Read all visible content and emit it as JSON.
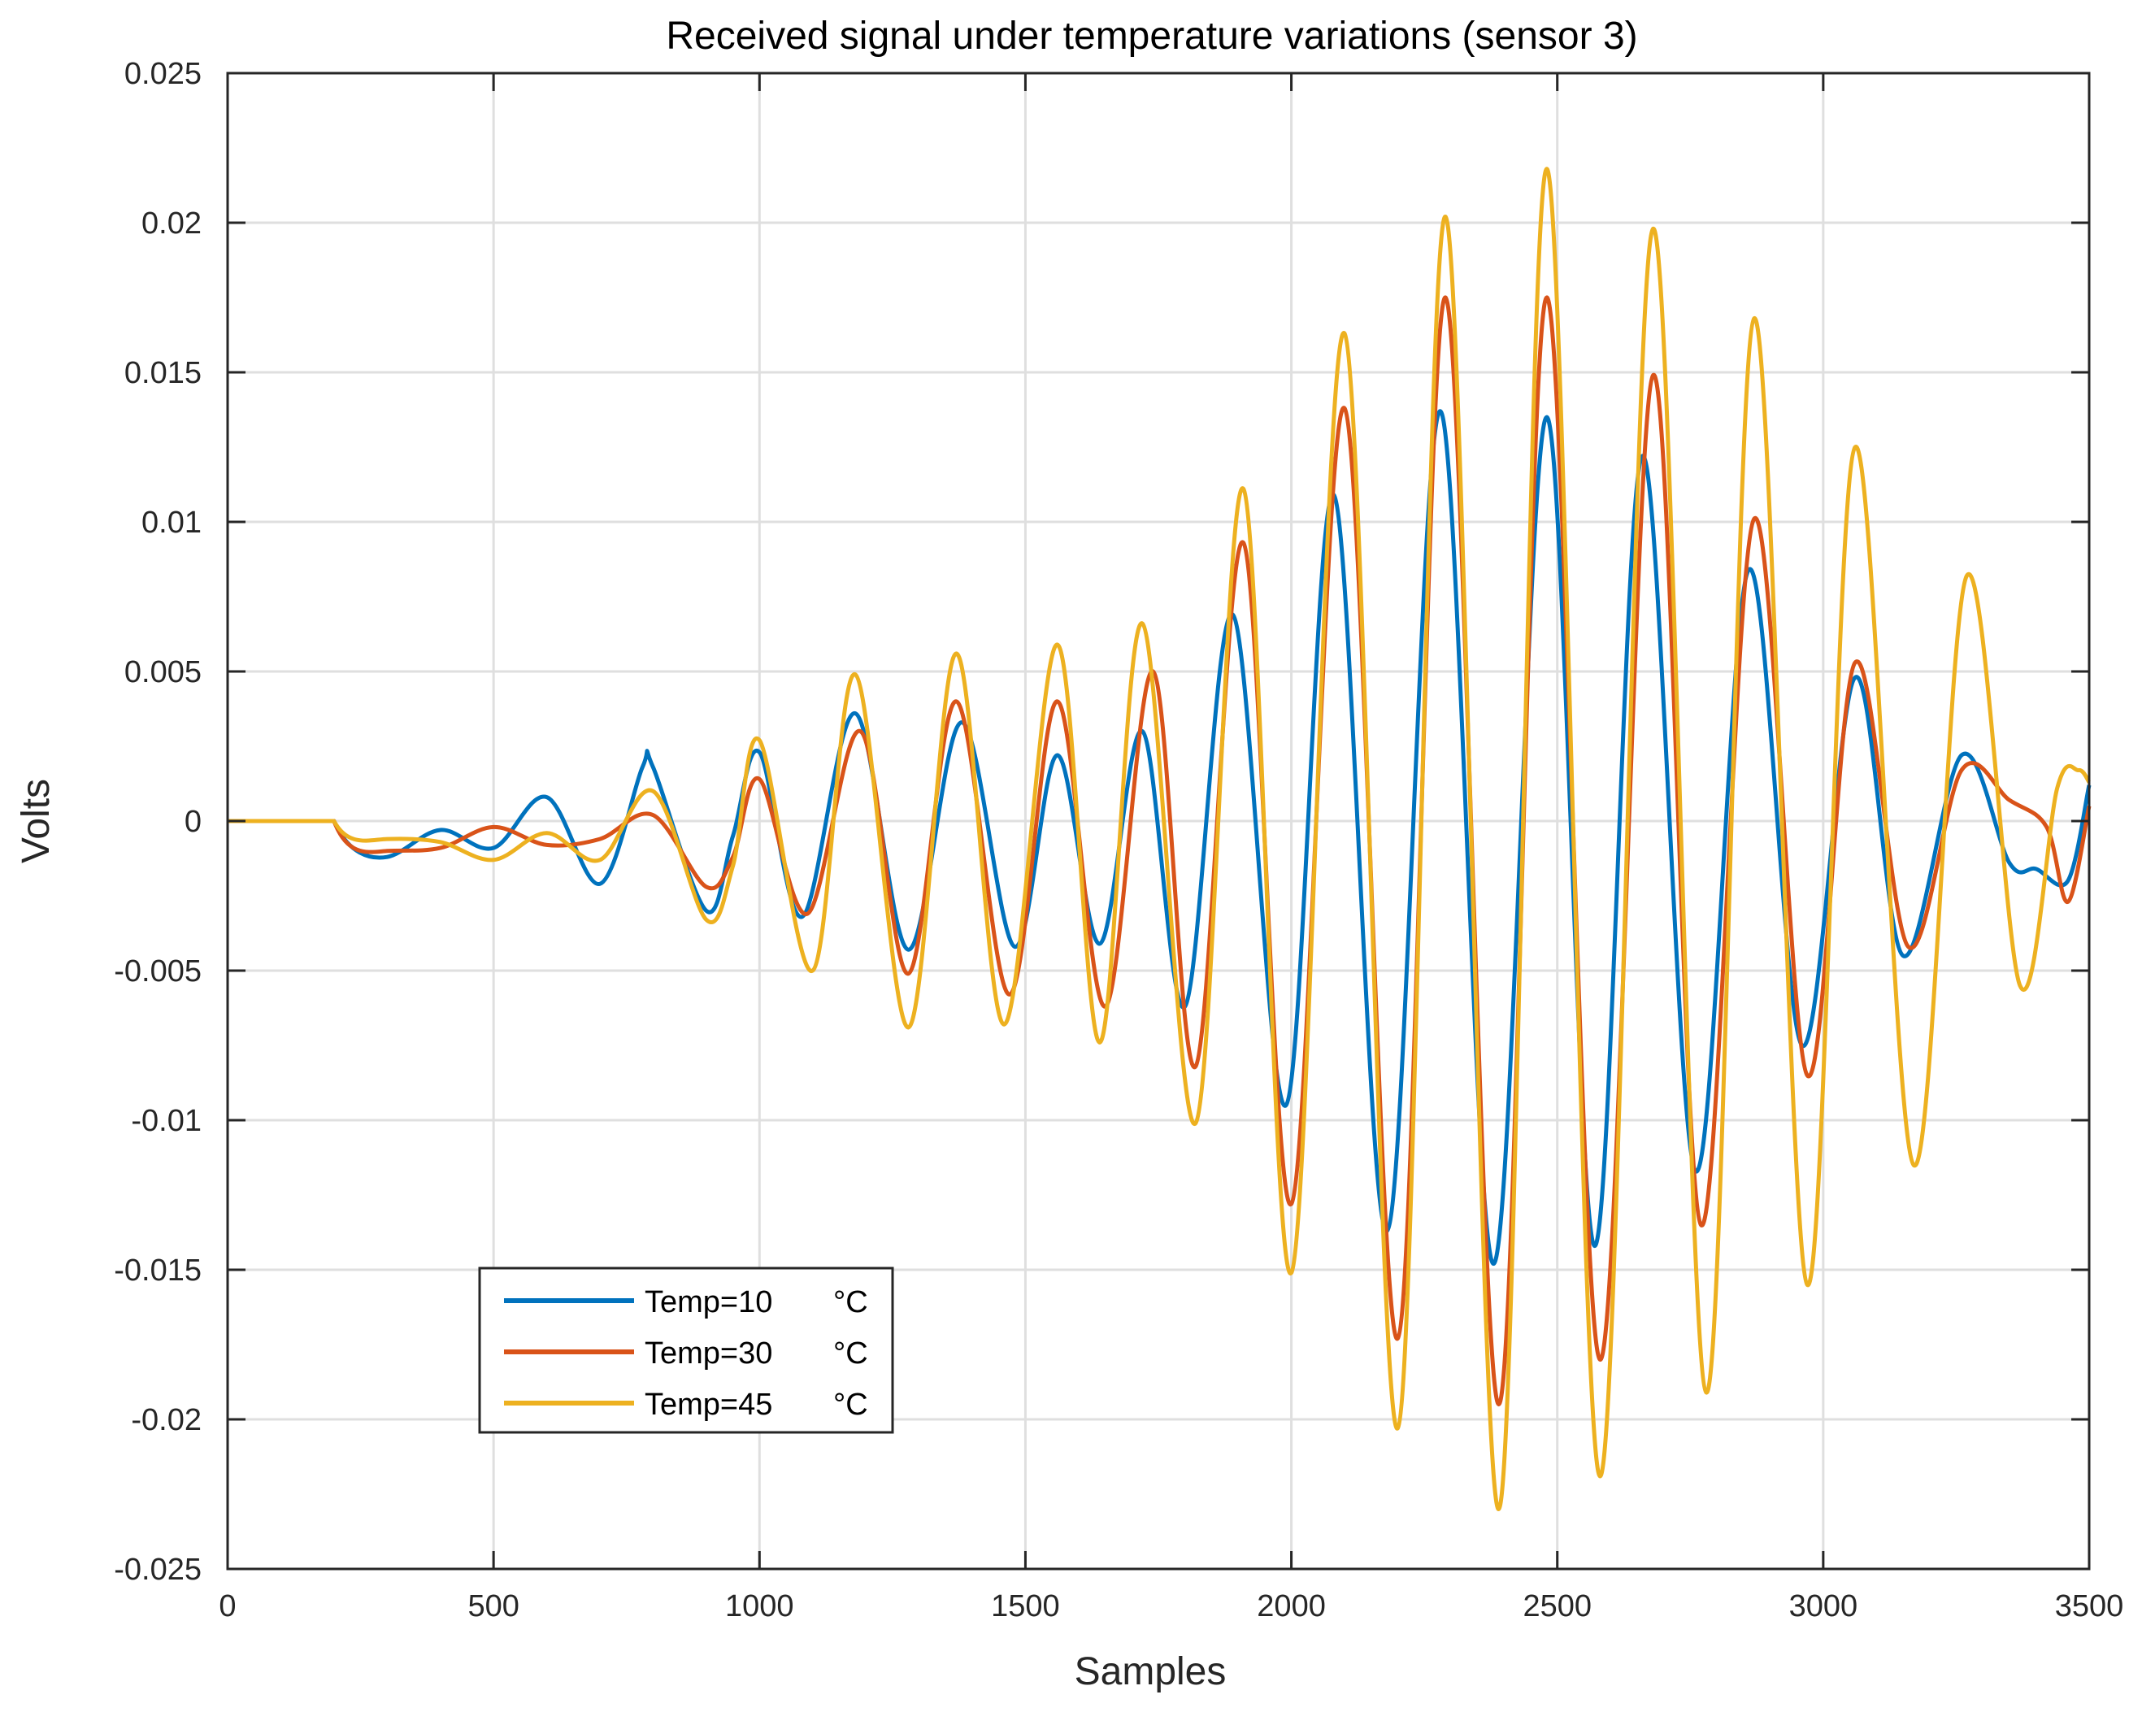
{
  "chart_data": {
    "type": "line",
    "title": "Received signal under temperature variations (sensor 3)",
    "xlabel": "Samples",
    "ylabel": "Volts",
    "xlim": [
      0,
      3500
    ],
    "ylim": [
      -0.025,
      0.025
    ],
    "xticks": [
      0,
      500,
      1000,
      1500,
      2000,
      2500,
      3000,
      3500
    ],
    "xtick_labels": [
      "0",
      "500",
      "1000",
      "1500",
      "2000",
      "2500",
      "3000",
      "3500"
    ],
    "yticks": [
      -0.025,
      -0.02,
      -0.015,
      -0.01,
      -0.005,
      0,
      0.005,
      0.01,
      0.015,
      0.02,
      0.025
    ],
    "ytick_labels": [
      "-0.025",
      "-0.02",
      "-0.015",
      "-0.01",
      "-0.005",
      "0",
      "0.005",
      "0.01",
      "0.015",
      "0.02",
      "0.025"
    ],
    "grid": true,
    "legend_position": "lower-left",
    "series": [
      {
        "name": "Temp=10 °C",
        "label_text": "Temp=10",
        "unit_text": "°C",
        "color": "#0072BD",
        "x": [
          0,
          200,
          210,
          300,
          400,
          500,
          600,
          700,
          780,
          800,
          900,
          950,
          1000,
          1080,
          1180,
          1280,
          1380,
          1480,
          1560,
          1640,
          1720,
          1800,
          1890,
          1990,
          2080,
          2180,
          2280,
          2380,
          2480,
          2570,
          2660,
          2760,
          2860,
          2960,
          3060,
          3150,
          3260,
          3350,
          3400,
          3460,
          3500
        ],
        "y": [
          0,
          0,
          -0.0009,
          -0.0012,
          -0.0003,
          -0.0009,
          0.0008,
          -0.0021,
          0.0018,
          0.0018,
          -0.003,
          -0.0005,
          0.0023,
          -0.0032,
          0.0036,
          -0.0043,
          0.0033,
          -0.0042,
          0.0022,
          -0.0041,
          0.003,
          -0.0062,
          0.0069,
          -0.0095,
          0.0109,
          -0.0137,
          0.0137,
          -0.0148,
          0.0135,
          -0.0142,
          0.0122,
          -0.0117,
          0.0084,
          -0.0075,
          0.0048,
          -0.0045,
          0.0022,
          -0.0014,
          -0.0016,
          -0.002,
          0.0012
        ]
      },
      {
        "name": "Temp=30 °C",
        "label_text": "Temp=30",
        "unit_text": "°C",
        "color": "#D95319",
        "x": [
          0,
          200,
          210,
          300,
          400,
          500,
          600,
          700,
          800,
          900,
          950,
          1000,
          1090,
          1190,
          1280,
          1370,
          1470,
          1560,
          1650,
          1740,
          1820,
          1910,
          2000,
          2100,
          2200,
          2290,
          2390,
          2480,
          2580,
          2680,
          2770,
          2870,
          2970,
          3060,
          3160,
          3260,
          3350,
          3420,
          3460,
          3500
        ],
        "y": [
          0,
          0,
          -0.0011,
          -0.001,
          -0.0009,
          -0.0002,
          -0.0008,
          -0.0006,
          0.0002,
          -0.0022,
          -0.0012,
          0.0014,
          -0.0031,
          0.003,
          -0.0051,
          0.004,
          -0.0058,
          0.004,
          -0.0062,
          0.005,
          -0.0082,
          0.0093,
          -0.0128,
          0.0138,
          -0.0173,
          0.0175,
          -0.0195,
          0.0175,
          -0.018,
          0.0149,
          -0.0135,
          0.0101,
          -0.0085,
          0.0053,
          -0.0042,
          0.0017,
          0.0007,
          -0.0002,
          -0.0027,
          0.0005
        ]
      },
      {
        "name": "Temp=45 °C",
        "label_text": "Temp=45",
        "unit_text": "°C",
        "color": "#EDB120",
        "x": [
          0,
          200,
          210,
          300,
          400,
          500,
          600,
          700,
          800,
          900,
          950,
          1000,
          1100,
          1180,
          1280,
          1370,
          1460,
          1560,
          1640,
          1720,
          1820,
          1910,
          2000,
          2100,
          2200,
          2290,
          2390,
          2480,
          2580,
          2680,
          2780,
          2870,
          2970,
          3060,
          3170,
          3270,
          3370,
          3440,
          3480,
          3500
        ],
        "y": [
          0,
          0,
          -0.0008,
          -0.0006,
          -0.0007,
          -0.0013,
          -0.0004,
          -0.0013,
          0.001,
          -0.0033,
          -0.0015,
          0.0027,
          -0.005,
          0.0049,
          -0.0069,
          0.0056,
          -0.0068,
          0.0059,
          -0.0074,
          0.0066,
          -0.0101,
          0.0111,
          -0.0151,
          0.0163,
          -0.0203,
          0.0202,
          -0.023,
          0.0218,
          -0.0219,
          0.0198,
          -0.0191,
          0.0168,
          -0.0155,
          0.0125,
          -0.0115,
          0.0082,
          -0.0055,
          0.0011,
          0.0017,
          0.0013
        ]
      }
    ]
  }
}
